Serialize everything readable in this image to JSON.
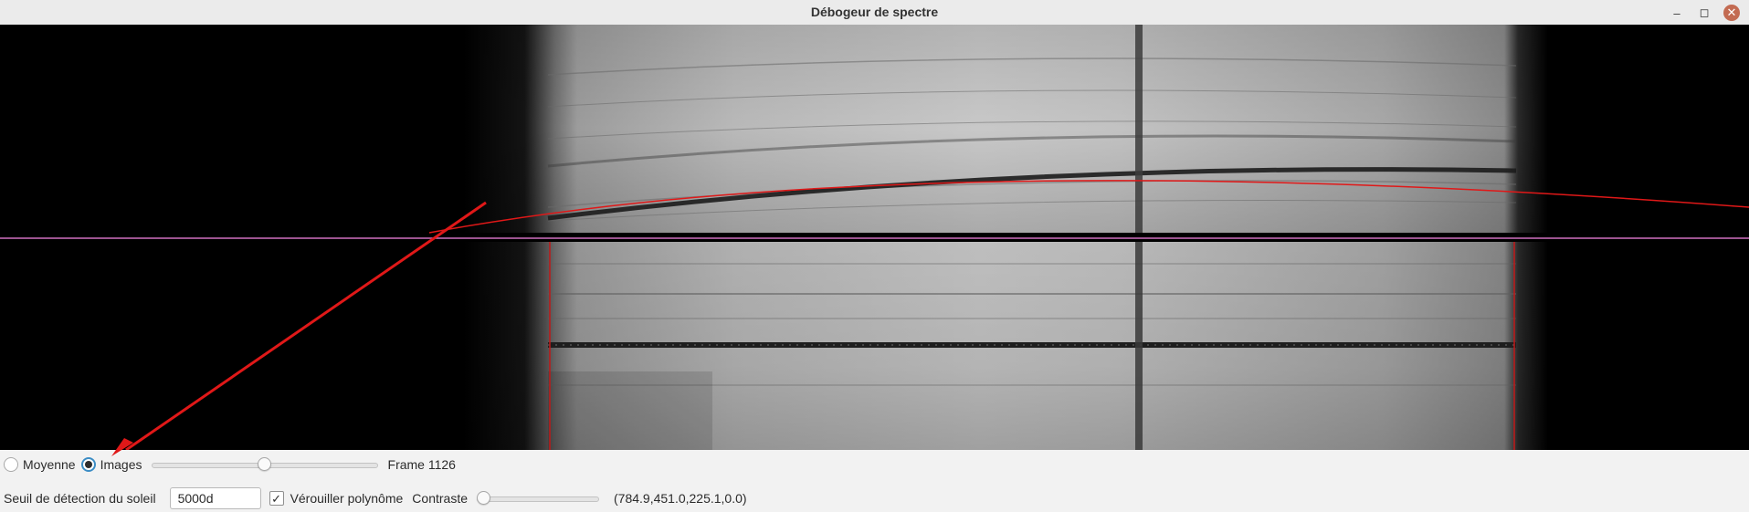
{
  "window": {
    "title": "Débogeur de spectre",
    "buttons": [
      "minimize-icon",
      "maximize-icon",
      "close-icon"
    ]
  },
  "controls": {
    "mode_radio": {
      "options": [
        "Moyenne",
        "Images"
      ],
      "selected": "Images"
    },
    "frame_slider": {
      "position_fraction": 0.5
    },
    "frame_label": "Frame 1126",
    "sun_threshold_label": "Seuil de détection du soleil",
    "sun_threshold_value": "5000d",
    "lock_polynomial": {
      "label": "Vérouiller polynôme",
      "checked": true
    },
    "contrast_label": "Contraste",
    "contrast_slider": {
      "position_fraction": 0.0
    },
    "values_readout": "(784.9,451.0,225.1,0.0)"
  },
  "colors": {
    "accent": "#3c8dc5",
    "polynomial_curve": "#e01818",
    "annotation_arrow": "#e01818",
    "guide_line": "#d070c0"
  }
}
